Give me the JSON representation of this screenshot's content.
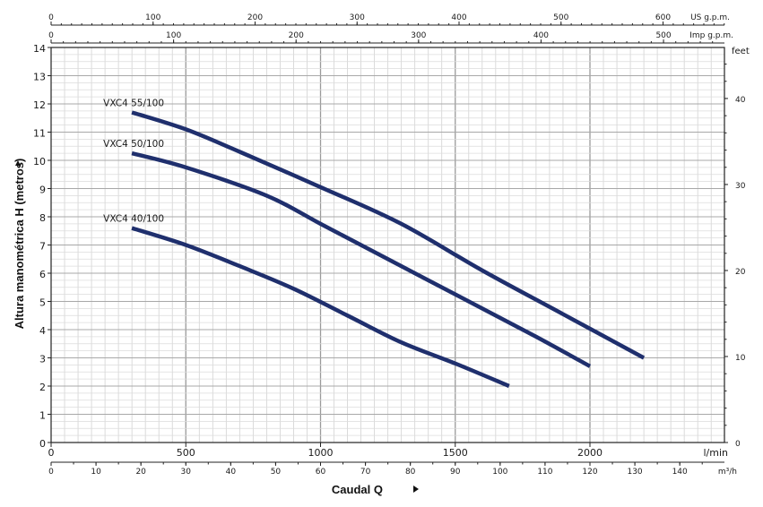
{
  "chart_data": {
    "type": "line",
    "title": "",
    "xlabel": "Caudal Q",
    "ylabel": "Altura manométrica H (metros)",
    "xlim": [
      0,
      2500
    ],
    "ylim": [
      0,
      14
    ],
    "grid": true,
    "x_unit": "l/min",
    "y_right_unit": "feet",
    "top_axis_us": {
      "unit": "US g.p.m.",
      "ticks": [
        "0",
        "100",
        "200",
        "300",
        "400",
        "500",
        "600"
      ]
    },
    "top_axis_imp": {
      "unit": "Imp g.p.m.",
      "ticks": [
        "0",
        "100",
        "200",
        "300",
        "400",
        "500"
      ]
    },
    "bottom_axis_m3h": {
      "unit": "m³/h",
      "ticks": [
        "0",
        "10",
        "20",
        "30",
        "40",
        "50",
        "60",
        "70",
        "80",
        "90",
        "100",
        "110",
        "120",
        "130",
        "140"
      ]
    },
    "right_axis_feet": {
      "ticks": [
        "0",
        "10",
        "20",
        "30",
        "40"
      ]
    },
    "y_ticks": [
      "0",
      "1",
      "2",
      "3",
      "4",
      "5",
      "6",
      "7",
      "8",
      "9",
      "10",
      "11",
      "12",
      "13",
      "14"
    ],
    "x_ticks": [
      "0",
      "500",
      "1000",
      "1500",
      "2000"
    ],
    "series": [
      {
        "name": "VXC4 55/100",
        "color": "#1f2f6d",
        "x": [
          300,
          500,
          700,
          1000,
          1300,
          1600,
          1900,
          2200
        ],
        "y": [
          11.7,
          11.1,
          10.3,
          9.05,
          7.75,
          6.1,
          4.55,
          3.0
        ]
      },
      {
        "name": "VXC4 50/100",
        "color": "#1f2f6d",
        "x": [
          300,
          500,
          800,
          1000,
          1200,
          1500,
          1800,
          2000
        ],
        "y": [
          10.25,
          9.75,
          8.75,
          7.75,
          6.75,
          5.25,
          3.75,
          2.7
        ]
      },
      {
        "name": "VXC4 40/100",
        "color": "#1f2f6d",
        "x": [
          300,
          500,
          700,
          900,
          1100,
          1300,
          1500,
          1700
        ],
        "y": [
          7.6,
          7.0,
          6.25,
          5.45,
          4.5,
          3.55,
          2.8,
          2.0
        ]
      }
    ]
  }
}
